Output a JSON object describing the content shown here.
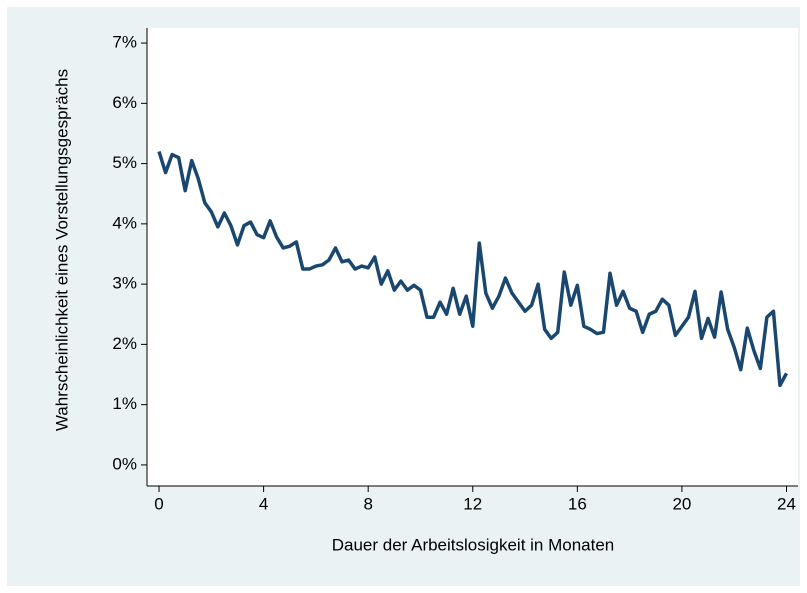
{
  "chart_data": {
    "type": "line",
    "xlabel": "Dauer der Arbeitslosigkeit in Monaten",
    "ylabel": "Wahrscheinlichkeit eines Vorstellungsgesprächs",
    "x": [
      0,
      0.25,
      0.5,
      0.75,
      1,
      1.25,
      1.5,
      1.75,
      2,
      2.25,
      2.5,
      2.75,
      3,
      3.25,
      3.5,
      3.75,
      4,
      4.25,
      4.5,
      4.75,
      5,
      5.25,
      5.5,
      5.75,
      6,
      6.25,
      6.5,
      6.75,
      7,
      7.25,
      7.5,
      7.75,
      8,
      8.25,
      8.5,
      8.75,
      9,
      9.25,
      9.5,
      9.75,
      10,
      10.25,
      10.5,
      10.75,
      11,
      11.25,
      11.5,
      11.75,
      12,
      12.25,
      12.5,
      12.75,
      13,
      13.25,
      13.5,
      13.75,
      14,
      14.25,
      14.5,
      14.75,
      15,
      15.25,
      15.5,
      15.75,
      16,
      16.25,
      16.5,
      16.75,
      17,
      17.25,
      17.5,
      17.75,
      18,
      18.25,
      18.5,
      18.75,
      19,
      19.25,
      19.5,
      19.75,
      20,
      20.25,
      20.5,
      20.75,
      21,
      21.25,
      21.5,
      21.75,
      22,
      22.25,
      22.5,
      22.75,
      23,
      23.25,
      23.5,
      23.75,
      24
    ],
    "series": [
      {
        "name": "Wahrscheinlichkeit",
        "color": "#1a476f",
        "values": [
          5.2,
          4.85,
          5.15,
          5.1,
          4.55,
          5.05,
          4.75,
          4.35,
          4.2,
          3.95,
          4.18,
          3.97,
          3.65,
          3.97,
          4.03,
          3.82,
          3.77,
          4.05,
          3.78,
          3.6,
          3.63,
          3.7,
          3.25,
          3.25,
          3.3,
          3.32,
          3.4,
          3.6,
          3.37,
          3.4,
          3.25,
          3.3,
          3.27,
          3.45,
          3.0,
          3.22,
          2.9,
          3.05,
          2.9,
          2.98,
          2.9,
          2.45,
          2.45,
          2.7,
          2.5,
          2.93,
          2.5,
          2.8,
          2.3,
          3.68,
          2.85,
          2.6,
          2.8,
          3.1,
          2.85,
          2.7,
          2.55,
          2.65,
          3.0,
          2.25,
          2.1,
          2.2,
          3.2,
          2.65,
          2.98,
          2.3,
          2.25,
          2.18,
          2.2,
          3.18,
          2.65,
          2.88,
          2.6,
          2.55,
          2.2,
          2.5,
          2.55,
          2.75,
          2.65,
          2.15,
          2.3,
          2.45,
          2.88,
          2.1,
          2.43,
          2.12,
          2.87,
          2.25,
          1.95,
          1.58,
          2.27,
          1.9,
          1.6,
          2.45,
          2.55,
          1.32,
          1.52
        ]
      }
    ],
    "xlim": [
      -0.46,
      24.44
    ],
    "ylim": [
      -0.35,
      7.25
    ],
    "xticks": [
      0,
      4,
      8,
      12,
      16,
      20,
      24
    ],
    "yticks": [
      {
        "value": 0,
        "label": "0%"
      },
      {
        "value": 1,
        "label": "1%"
      },
      {
        "value": 2,
        "label": "2%"
      },
      {
        "value": 3,
        "label": "3%"
      },
      {
        "value": 4,
        "label": "4%"
      },
      {
        "value": 5,
        "label": "5%"
      },
      {
        "value": 6,
        "label": "6%"
      },
      {
        "value": 7,
        "label": "7%"
      }
    ]
  }
}
